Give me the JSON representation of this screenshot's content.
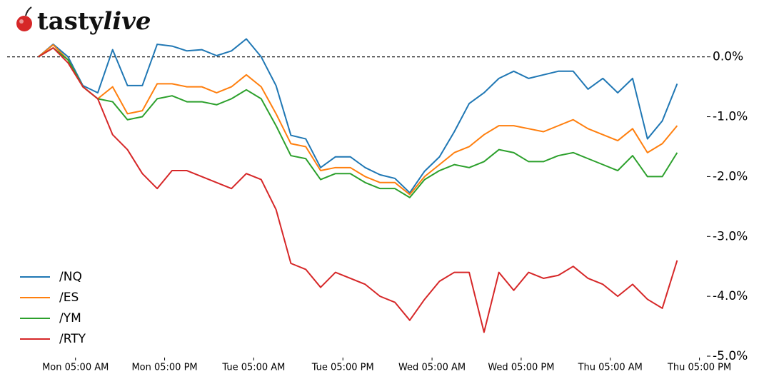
{
  "chart_data": {
    "type": "line",
    "logo": [
      "tasty",
      "live"
    ],
    "x": [
      0,
      2,
      4,
      6,
      8,
      10,
      12,
      14,
      16,
      18,
      20,
      22,
      24,
      26,
      28,
      30,
      32,
      34,
      36,
      38,
      40,
      42,
      44,
      46,
      48,
      50,
      52,
      54,
      56,
      58,
      60,
      62,
      64,
      66,
      68,
      70,
      72,
      74,
      76,
      78,
      80,
      82,
      84,
      86
    ],
    "series": [
      {
        "name": "/NQ",
        "color": "#1f77b4",
        "values": [
          0,
          0.21,
          0,
          -0.48,
          -0.6,
          0.12,
          -0.48,
          -0.48,
          0.21,
          0.18,
          0.1,
          0.12,
          0.02,
          0.1,
          0.3,
          0,
          -0.48,
          -1.31,
          -1.37,
          -1.85,
          -1.67,
          -1.67,
          -1.85,
          -1.97,
          -2.03,
          -2.27,
          -1.91,
          -1.67,
          -1.25,
          -0.78,
          -0.6,
          -0.36,
          -0.24,
          -0.36,
          -0.3,
          -0.24,
          -0.24,
          -0.54,
          -0.36,
          -0.6,
          -0.36,
          -1.37,
          -1.07,
          -0.45
        ]
      },
      {
        "name": "/ES",
        "color": "#ff7f0e",
        "values": [
          0,
          0.2,
          -0.05,
          -0.5,
          -0.7,
          -0.5,
          -0.95,
          -0.9,
          -0.45,
          -0.45,
          -0.5,
          -0.5,
          -0.6,
          -0.5,
          -0.3,
          -0.5,
          -0.95,
          -1.45,
          -1.5,
          -1.9,
          -1.85,
          -1.85,
          -2.0,
          -2.1,
          -2.1,
          -2.3,
          -2.0,
          -1.8,
          -1.6,
          -1.5,
          -1.3,
          -1.15,
          -1.15,
          -1.2,
          -1.25,
          -1.15,
          -1.05,
          -1.2,
          -1.3,
          -1.4,
          -1.2,
          -1.6,
          -1.45,
          -1.15
        ]
      },
      {
        "name": "/YM",
        "color": "#2ca02c",
        "values": [
          0,
          0.15,
          -0.05,
          -0.5,
          -0.7,
          -0.75,
          -1.05,
          -1.0,
          -0.7,
          -0.65,
          -0.75,
          -0.75,
          -0.8,
          -0.7,
          -0.55,
          -0.7,
          -1.15,
          -1.65,
          -1.7,
          -2.05,
          -1.95,
          -1.95,
          -2.1,
          -2.2,
          -2.2,
          -2.35,
          -2.05,
          -1.9,
          -1.8,
          -1.85,
          -1.75,
          -1.55,
          -1.6,
          -1.75,
          -1.75,
          -1.65,
          -1.6,
          -1.7,
          -1.8,
          -1.9,
          -1.65,
          -2.0,
          -2.0,
          -1.6
        ]
      },
      {
        "name": "/RTY",
        "color": "#d62728",
        "values": [
          0,
          0.15,
          -0.1,
          -0.5,
          -0.7,
          -1.3,
          -1.55,
          -1.95,
          -2.2,
          -1.9,
          -1.9,
          -2.0,
          -2.1,
          -2.2,
          -1.95,
          -2.05,
          -2.55,
          -3.45,
          -3.55,
          -3.85,
          -3.6,
          -3.7,
          -3.8,
          -4.0,
          -4.1,
          -4.4,
          -4.05,
          -3.75,
          -3.6,
          -3.6,
          -4.6,
          -3.6,
          -3.9,
          -3.6,
          -3.7,
          -3.65,
          -3.5,
          -3.7,
          -3.8,
          -4.0,
          -3.8,
          -4.05,
          -4.2,
          -3.4
        ]
      }
    ],
    "xlim": [
      -4.2,
      90
    ],
    "xticks": [
      {
        "value": 5,
        "label": "Mon 05:00 AM"
      },
      {
        "value": 17,
        "label": "Mon 05:00 PM"
      },
      {
        "value": 29,
        "label": "Tue 05:00 AM"
      },
      {
        "value": 41,
        "label": "Tue 05:00 PM"
      },
      {
        "value": 53,
        "label": "Wed 05:00 AM"
      },
      {
        "value": 65,
        "label": "Wed 05:00 PM"
      },
      {
        "value": 77,
        "label": "Thu 05:00 AM"
      },
      {
        "value": 89,
        "label": "Thu 05:00 PM"
      }
    ],
    "ylim": [
      -5,
      0.95
    ],
    "yticks": [
      {
        "value": 0,
        "label": "0.0%"
      },
      {
        "value": -1,
        "label": "-1.0%"
      },
      {
        "value": -2,
        "label": "-2.0%"
      },
      {
        "value": -3,
        "label": "-3.0%"
      },
      {
        "value": -4,
        "label": "-4.0%"
      },
      {
        "value": -5,
        "label": "-5.0%"
      }
    ],
    "zero_line": true,
    "legend": "lower left"
  }
}
